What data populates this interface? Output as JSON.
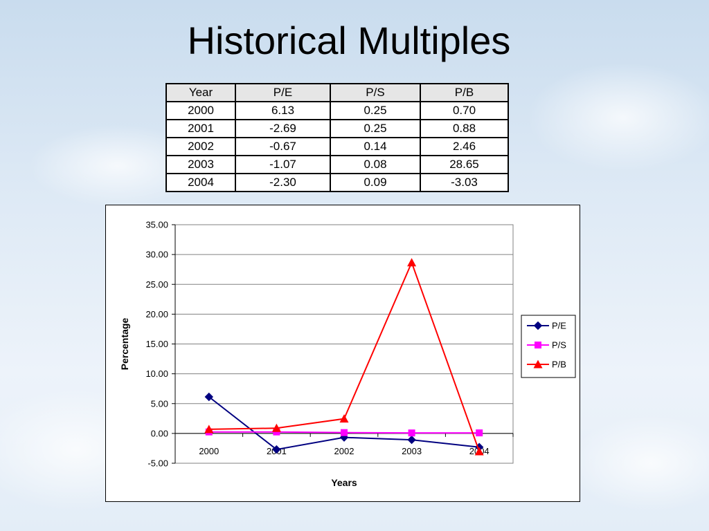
{
  "slide": {
    "title": "Historical Multiples"
  },
  "table": {
    "headers": [
      "Year",
      "P/E",
      "P/S",
      "P/B"
    ],
    "rows": [
      [
        "2000",
        "6.13",
        "0.25",
        "0.70"
      ],
      [
        "2001",
        "-2.69",
        "0.25",
        "0.88"
      ],
      [
        "2002",
        "-0.67",
        "0.14",
        "2.46"
      ],
      [
        "2003",
        "-1.07",
        "0.08",
        "28.65"
      ],
      [
        "2004",
        "-2.30",
        "0.09",
        "-3.03"
      ]
    ]
  },
  "chart_data": {
    "type": "line",
    "title": "",
    "xlabel": "Years",
    "ylabel": "Percentage",
    "categories": [
      "2000",
      "2001",
      "2002",
      "2003",
      "2004"
    ],
    "ylim": [
      -5,
      35
    ],
    "ystep": 5,
    "ytick_labels": [
      "-5.00",
      "0.00",
      "5.00",
      "10.00",
      "15.00",
      "20.00",
      "25.00",
      "30.00",
      "35.00"
    ],
    "grid": true,
    "legend_position": "right",
    "series": [
      {
        "name": "P/E",
        "values": [
          6.13,
          -2.69,
          -0.67,
          -1.07,
          -2.3
        ],
        "color": "#000080",
        "marker": "diamond"
      },
      {
        "name": "P/S",
        "values": [
          0.25,
          0.25,
          0.14,
          0.08,
          0.09
        ],
        "color": "#ff00ff",
        "marker": "square"
      },
      {
        "name": "P/B",
        "values": [
          0.7,
          0.88,
          2.46,
          28.65,
          -3.03
        ],
        "color": "#ff0000",
        "marker": "triangle"
      }
    ]
  }
}
